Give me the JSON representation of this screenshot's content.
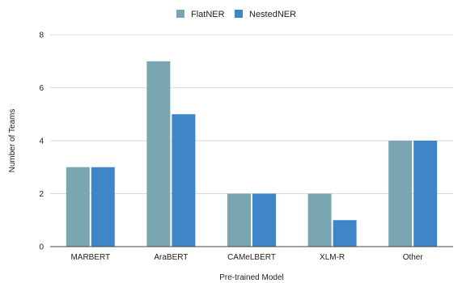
{
  "chart_data": {
    "type": "bar",
    "title": "",
    "xlabel": "Pre-trained Model",
    "ylabel": "Number of Teams",
    "categories": [
      "MARBERT",
      "AraBERT",
      "CAMeLBERT",
      "XLM-R",
      "Other"
    ],
    "series": [
      {
        "name": "FlatNER",
        "values": [
          3,
          7,
          2,
          2,
          4
        ],
        "color": "#7aa6b1"
      },
      {
        "name": "NestedNER",
        "values": [
          3,
          5,
          2,
          1,
          4
        ],
        "color": "#3f86c9"
      }
    ],
    "ylim": [
      0,
      8
    ],
    "yticks": [
      0,
      2,
      4,
      6,
      8
    ],
    "grid": true,
    "legend_position": "top-center",
    "gridline_color": "#d9d9d9",
    "axis_color": "#444444"
  }
}
